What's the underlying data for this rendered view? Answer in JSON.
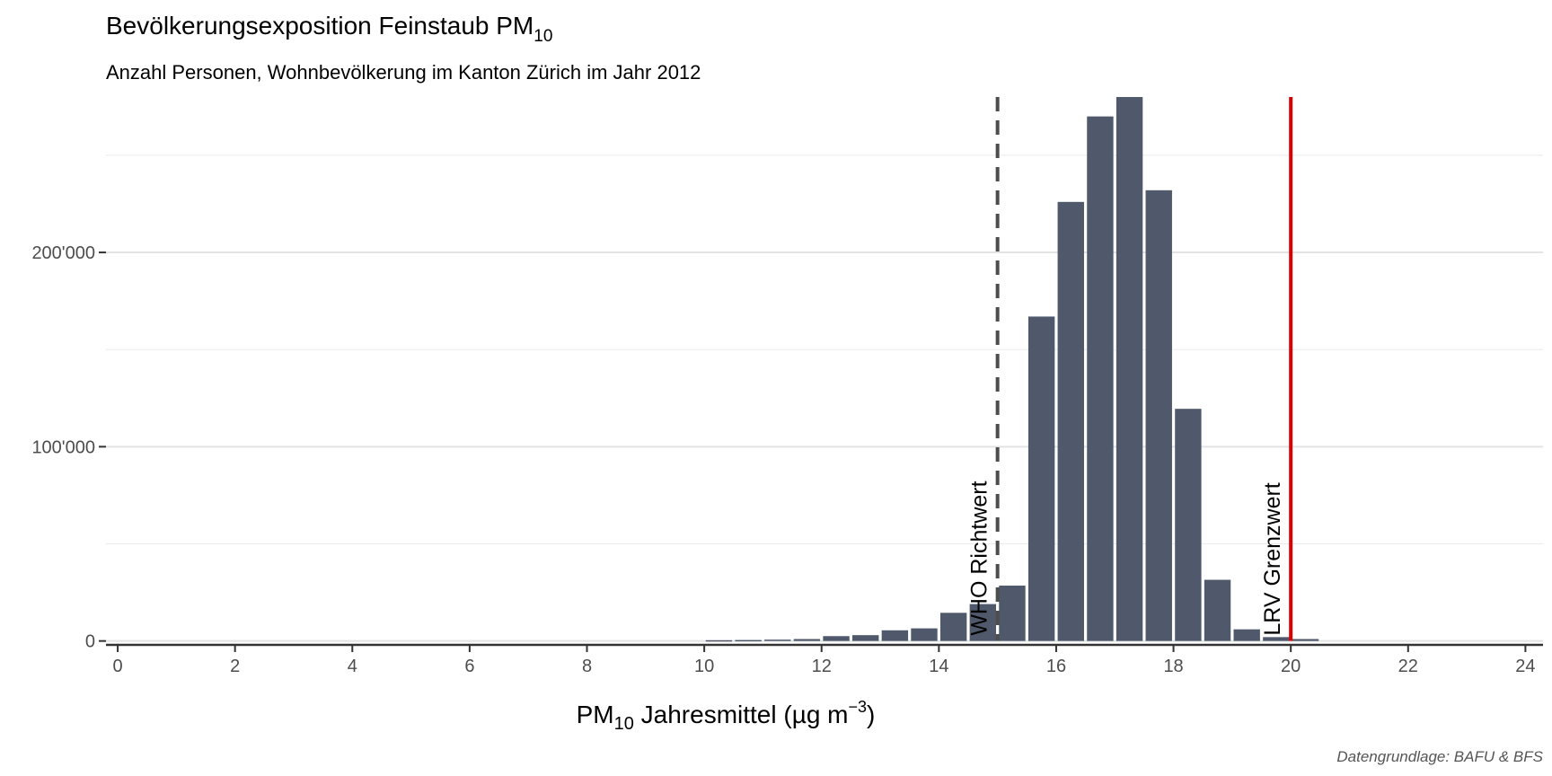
{
  "chart_data": {
    "type": "bar",
    "title_main": "Bevölkerungsexposition Feinstaub PM",
    "title_sub": "10",
    "subtitle": "Anzahl Personen, Wohnbevölkerung im Kanton Zürich im Jahr 2012",
    "xlabel_prefix": "PM",
    "xlabel_sub": "10",
    "xlabel_mid": " Jahresmittel (µg m",
    "xlabel_sup": "−3",
    "xlabel_suffix": ")",
    "caption": "Datengrundlage: BAFU & BFS",
    "xlim": [
      -0.2,
      24.3
    ],
    "ylim": [
      -2000,
      280000
    ],
    "x_ticks": [
      0,
      2,
      4,
      6,
      8,
      10,
      12,
      14,
      16,
      18,
      20,
      22,
      24
    ],
    "x_tick_labels": [
      "0",
      "2",
      "4",
      "6",
      "8",
      "10",
      "12",
      "14",
      "16",
      "18",
      "20",
      "22",
      "24"
    ],
    "y_ticks": [
      0,
      100000,
      200000
    ],
    "y_tick_labels": [
      "0",
      "100'000",
      "200'000"
    ],
    "y_minor_ticks": [
      50000,
      150000,
      250000
    ],
    "grid": true,
    "bar_color": "#4f596b",
    "bar_width": 0.45,
    "x": [
      10.25,
      10.75,
      11.25,
      11.75,
      12.25,
      12.75,
      13.25,
      13.75,
      14.25,
      14.75,
      15.25,
      15.75,
      16.25,
      16.75,
      17.25,
      17.75,
      18.25,
      18.75,
      19.25,
      19.75,
      20.25
    ],
    "values": [
      400,
      500,
      700,
      1000,
      2500,
      3000,
      5500,
      6500,
      14500,
      19000,
      28500,
      167000,
      226000,
      270000,
      280000,
      232000,
      119500,
      31500,
      6000,
      2000,
      1000
    ],
    "reference_lines": [
      {
        "x": 15,
        "label": "WHO Richtwert",
        "color": "#4d4d4d",
        "style": "dashed"
      },
      {
        "x": 20,
        "label": "LRV Grenzwert",
        "color": "#dd0000",
        "style": "solid"
      }
    ]
  }
}
